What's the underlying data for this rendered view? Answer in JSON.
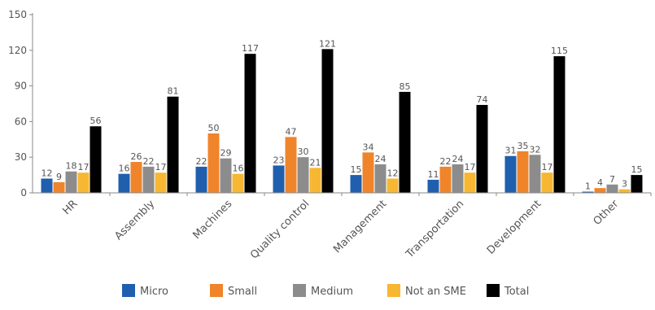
{
  "chart_data": {
    "type": "bar",
    "title": "",
    "xlabel": "",
    "ylabel": "",
    "ylim": [
      0,
      150
    ],
    "yticks": [
      0,
      30,
      60,
      90,
      120,
      150
    ],
    "grid": false,
    "legend_position": "bottom",
    "categories": [
      "HR",
      "Assembly",
      "Machines",
      "Quality control",
      "Management",
      "Transportation",
      "Development",
      "Other"
    ],
    "series": [
      {
        "name": "Micro",
        "color": "#1f5fae",
        "values": [
          12,
          16,
          22,
          23,
          15,
          11,
          31,
          1
        ]
      },
      {
        "name": "Small",
        "color": "#f0842b",
        "values": [
          9,
          26,
          50,
          47,
          34,
          22,
          35,
          4
        ]
      },
      {
        "name": "Medium",
        "color": "#8c8c8c",
        "values": [
          18,
          22,
          29,
          30,
          24,
          24,
          32,
          7
        ]
      },
      {
        "name": "Not an SME",
        "color": "#f7b733",
        "values": [
          17,
          17,
          16,
          21,
          12,
          17,
          17,
          3
        ]
      },
      {
        "name": "Total",
        "color": "#000000",
        "values": [
          56,
          81,
          117,
          121,
          85,
          74,
          115,
          15
        ]
      }
    ]
  }
}
